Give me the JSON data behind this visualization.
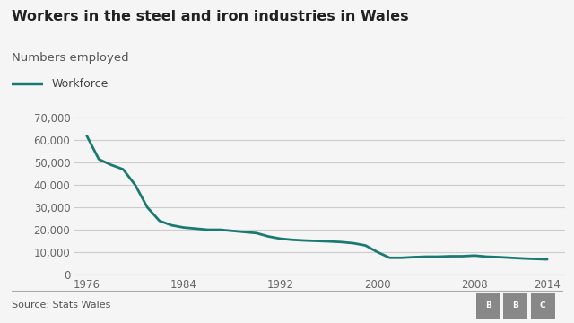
{
  "title": "Workers in the steel and iron industries in Wales",
  "subtitle": "Numbers employed",
  "legend_label": "Workforce",
  "source": "Source: Stats Wales",
  "line_color": "#1a7a72",
  "background_color": "#f5f5f5",
  "years": [
    1976,
    1977,
    1978,
    1979,
    1980,
    1981,
    1982,
    1983,
    1984,
    1985,
    1986,
    1987,
    1988,
    1989,
    1990,
    1991,
    1992,
    1993,
    1994,
    1995,
    1996,
    1997,
    1998,
    1999,
    2000,
    2001,
    2002,
    2003,
    2004,
    2005,
    2006,
    2007,
    2008,
    2009,
    2010,
    2011,
    2012,
    2013,
    2014
  ],
  "values": [
    62000,
    51500,
    49000,
    47000,
    40000,
    30000,
    24000,
    22000,
    21000,
    20500,
    20000,
    20000,
    19500,
    19000,
    18500,
    17000,
    16000,
    15500,
    15200,
    15000,
    14800,
    14500,
    14000,
    13000,
    10000,
    7500,
    7500,
    7800,
    8000,
    8000,
    8200,
    8200,
    8500,
    8000,
    7800,
    7500,
    7200,
    7000,
    6800
  ],
  "xlim": [
    1975,
    2015.5
  ],
  "ylim": [
    0,
    75000
  ],
  "yticks": [
    0,
    10000,
    20000,
    30000,
    40000,
    50000,
    60000,
    70000
  ],
  "xticks": [
    1976,
    1984,
    1992,
    2000,
    2008,
    2014
  ],
  "grid_color": "#cccccc",
  "tick_label_color": "#666666",
  "title_fontsize": 11.5,
  "subtitle_fontsize": 9.5,
  "legend_fontsize": 9,
  "source_fontsize": 8,
  "line_width": 2.0,
  "bbc_box_color": "#888888"
}
